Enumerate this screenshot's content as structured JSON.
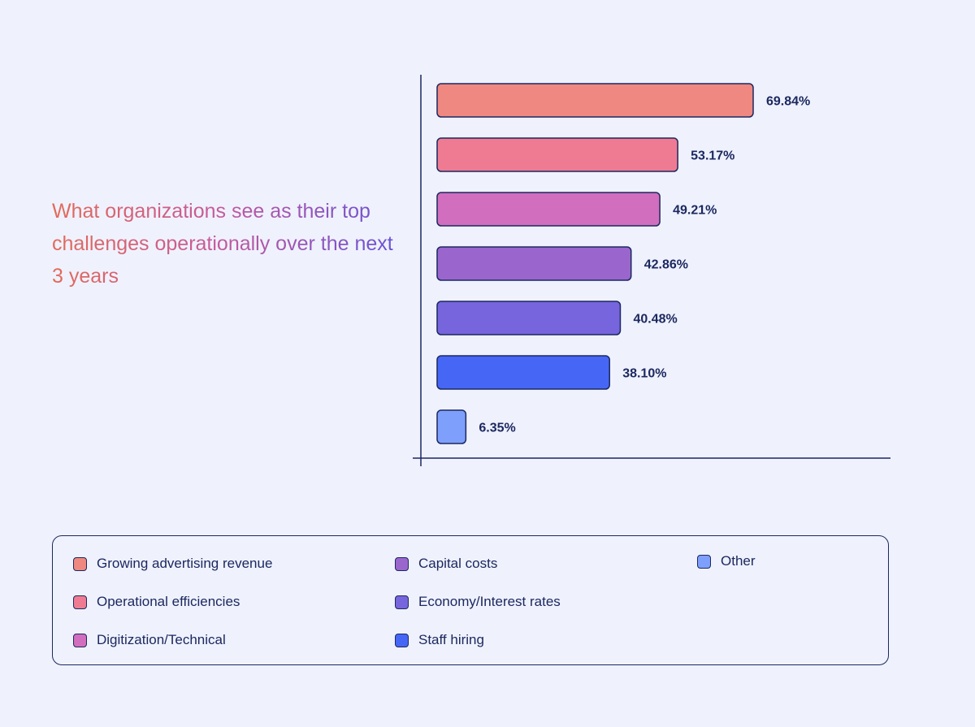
{
  "chart_data": {
    "type": "bar",
    "orientation": "horizontal",
    "title": "What organizations see as their top challenges operationally over the next 3 years",
    "categories": [
      "Growing advertising revenue",
      "Operational efficiencies",
      "Digitization/Technical",
      "Capital costs",
      "Economy/Interest rates",
      "Staff hiring",
      "Other"
    ],
    "values": [
      69.84,
      53.17,
      49.21,
      42.86,
      40.48,
      38.1,
      6.35
    ],
    "value_labels": [
      "69.84%",
      "53.17%",
      "49.21%",
      "42.86%",
      "40.48%",
      "38.10%",
      "6.35%"
    ],
    "colors": [
      "#ef8880",
      "#ef7b93",
      "#d26ebe",
      "#9a66ce",
      "#7665dc",
      "#4667f5",
      "#7e9ffb"
    ],
    "xlabel": "",
    "ylabel": "",
    "xlim": [
      0,
      100
    ],
    "grid": false,
    "legend": "bottom"
  },
  "legend": {
    "items": [
      {
        "label": "Growing advertising revenue",
        "color": "#ef8880"
      },
      {
        "label": "Operational efficiencies",
        "color": "#ef7b93"
      },
      {
        "label": "Digitization/Technical",
        "color": "#d26ebe"
      },
      {
        "label": "Capital costs",
        "color": "#9a66ce"
      },
      {
        "label": "Economy/Interest rates",
        "color": "#7665dc"
      },
      {
        "label": "Staff hiring",
        "color": "#4667f5"
      },
      {
        "label": "Other",
        "color": "#7e9ffb"
      }
    ]
  },
  "colors": {
    "background": "#eff2fd",
    "ink": "#1c2860"
  }
}
